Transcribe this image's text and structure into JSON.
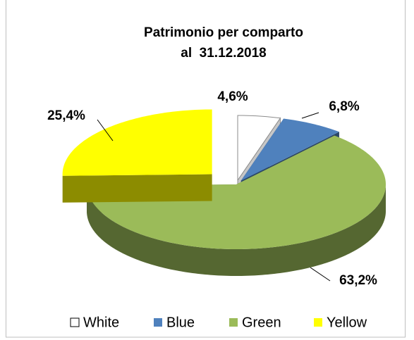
{
  "chart_data": {
    "type": "pie3d",
    "title": [
      "Patrimonio per comparto",
      "al  31.12.2018"
    ],
    "categories": [
      "White",
      "Blue",
      "Green",
      "Yellow"
    ],
    "values": [
      4.6,
      6.8,
      63.2,
      25.4
    ],
    "value_labels": [
      "4,6%",
      "6,8%",
      "63,2%",
      "25,4%"
    ],
    "colors": [
      "#ffffff",
      "#4f81bd",
      "#9bbb59",
      "#ffff00"
    ],
    "legend": "bottom"
  }
}
